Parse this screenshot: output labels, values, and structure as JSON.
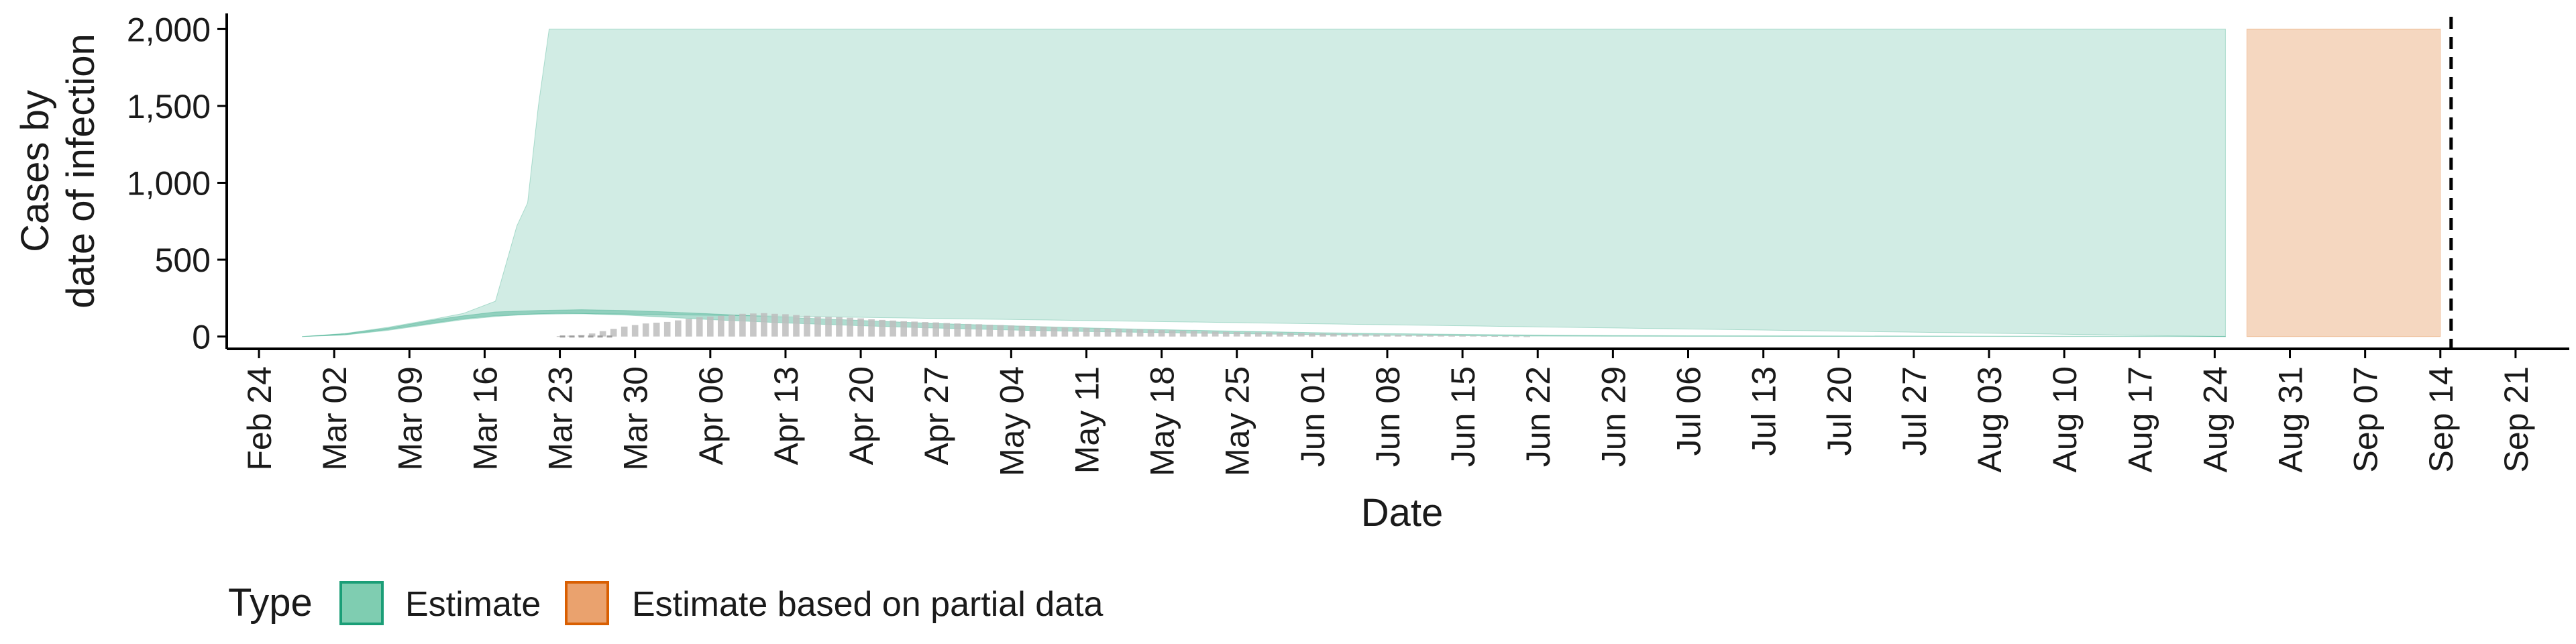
{
  "chart_data": {
    "type": "area",
    "title": "",
    "xlabel": "Date",
    "ylabel_lines": [
      "Cases by",
      "date of infection"
    ],
    "x_type": "date",
    "x_ticks": [
      "2020-02-24",
      "2020-03-02",
      "2020-03-09",
      "2020-03-16",
      "2020-03-23",
      "2020-03-30",
      "2020-04-06",
      "2020-04-13",
      "2020-04-20",
      "2020-04-27",
      "2020-05-04",
      "2020-05-11",
      "2020-05-18",
      "2020-05-25",
      "2020-06-01",
      "2020-06-08",
      "2020-06-15",
      "2020-06-22",
      "2020-06-29",
      "2020-07-06",
      "2020-07-13",
      "2020-07-20",
      "2020-07-27",
      "2020-08-03",
      "2020-08-10",
      "2020-08-17",
      "2020-08-24",
      "2020-08-31",
      "2020-09-07",
      "2020-09-14",
      "2020-09-21"
    ],
    "x_tick_labels": [
      "Feb 24",
      "Mar 02",
      "Mar 09",
      "Mar 16",
      "Mar 23",
      "Mar 30",
      "Apr 06",
      "Apr 13",
      "Apr 20",
      "Apr 27",
      "May 04",
      "May 11",
      "May 18",
      "May 25",
      "Jun 01",
      "Jun 08",
      "Jun 15",
      "Jun 22",
      "Jun 29",
      "Jul 06",
      "Jul 13",
      "Jul 20",
      "Jul 27",
      "Aug 03",
      "Aug 10",
      "Aug 17",
      "Aug 24",
      "Aug 31",
      "Sep 07",
      "Sep 14",
      "Sep 21"
    ],
    "xlim": [
      "2020-02-21",
      "2020-09-26"
    ],
    "y_ticks": [
      0,
      500,
      1000,
      1500,
      2000
    ],
    "y_tick_labels": [
      "0",
      "500",
      "1,000",
      "1,500",
      "2,000"
    ],
    "ylim": [
      -80,
      2080
    ],
    "grid": false,
    "legend": {
      "title": "Type",
      "position": "bottom-left",
      "entries": [
        {
          "label": "Estimate",
          "fill": "#7fcdb1",
          "stroke": "#1b9e77"
        },
        {
          "label": "Estimate based on partial data",
          "fill": "#eaa26e",
          "stroke": "#d95f02"
        }
      ]
    },
    "vline_dashed_date": "2020-09-15",
    "series": [
      {
        "name": "Estimate",
        "kind": "band",
        "color": "#1b9e77",
        "fill_opacity": 0.2,
        "x": [
          "2020-02-28",
          "2020-03-03",
          "2020-03-07",
          "2020-03-11",
          "2020-03-14",
          "2020-03-17",
          "2020-03-19",
          "2020-03-20",
          "2020-03-21",
          "2020-03-22",
          "2020-03-23",
          "2020-08-25"
        ],
        "lower": [
          0,
          10,
          40,
          80,
          110,
          130,
          140,
          145,
          148,
          150,
          152,
          0
        ],
        "upper": [
          0,
          20,
          60,
          110,
          150,
          230,
          720,
          870,
          1500,
          2000,
          2000,
          2000
        ]
      },
      {
        "name": "Estimate",
        "kind": "band",
        "color": "#1b9e77",
        "fill_opacity": 0.35,
        "x": [
          "2020-02-28",
          "2020-03-03",
          "2020-03-07",
          "2020-03-11",
          "2020-03-14",
          "2020-03-17",
          "2020-03-21",
          "2020-03-25",
          "2020-03-29",
          "2020-04-02",
          "2020-04-06",
          "2020-04-13",
          "2020-04-20",
          "2020-04-27",
          "2020-05-04",
          "2020-05-11",
          "2020-05-18",
          "2020-05-25",
          "2020-06-01",
          "2020-06-08",
          "2020-06-15",
          "2020-06-22",
          "2020-06-29",
          "2020-07-06",
          "2020-08-25"
        ],
        "lower": [
          0,
          12,
          45,
          85,
          115,
          135,
          145,
          148,
          140,
          125,
          110,
          88,
          70,
          55,
          42,
          32,
          25,
          18,
          12,
          8,
          5,
          3,
          2,
          1,
          0
        ],
        "upper": [
          0,
          18,
          55,
          105,
          135,
          160,
          170,
          175,
          170,
          160,
          148,
          125,
          105,
          85,
          70,
          56,
          45,
          35,
          26,
          19,
          14,
          10,
          7,
          5,
          1
        ]
      },
      {
        "name": "Estimate based on partial data",
        "kind": "band",
        "color": "#d95f02",
        "fill_opacity": 0.25,
        "x": [
          "2020-08-27",
          "2020-09-14"
        ],
        "lower": [
          0,
          0
        ],
        "upper": [
          2000,
          2000
        ]
      }
    ],
    "bars": {
      "name": "reported cases",
      "color": "#bdbdbd",
      "start": "2020-03-23",
      "end": "2020-06-22",
      "values": [
        2,
        5,
        10,
        20,
        35,
        50,
        65,
        75,
        85,
        90,
        95,
        105,
        115,
        125,
        130,
        135,
        140,
        148,
        150,
        152,
        148,
        145,
        140,
        135,
        130,
        128,
        126,
        122,
        118,
        112,
        108,
        104,
        100,
        97,
        94,
        92,
        88,
        85,
        82,
        80,
        77,
        75,
        72,
        70,
        68,
        65,
        62,
        60,
        58,
        56,
        54,
        52,
        50,
        48,
        46,
        44,
        42,
        40,
        38,
        36,
        34,
        32,
        30,
        29,
        28,
        27,
        26,
        25,
        24,
        22,
        20,
        19,
        18,
        17,
        16,
        15,
        14,
        13,
        12,
        11,
        10,
        9,
        8,
        7,
        6,
        5,
        4,
        3,
        2,
        1,
        1
      ]
    },
    "dashed_baseline": [
      "2020-03-23",
      "2020-03-28"
    ]
  }
}
